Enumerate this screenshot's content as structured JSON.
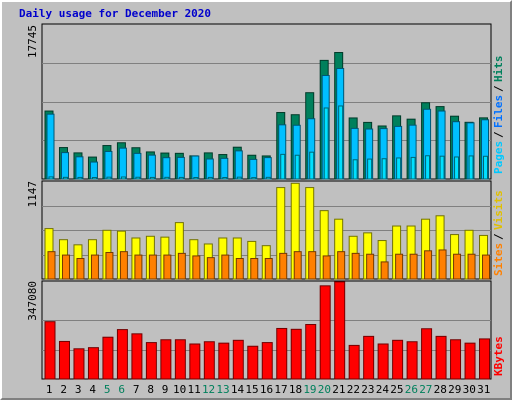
{
  "chart_data": [
    {
      "type": "bar",
      "title": "Daily usage for December 2020",
      "panel": "pages-files-hits",
      "ylabel_max": "17745",
      "ymax": 17745,
      "legend": [
        "Pages",
        "Files",
        "Hits"
      ],
      "legend_placement": "right",
      "categories": [
        "1",
        "2",
        "3",
        "4",
        "5",
        "6",
        "7",
        "8",
        "9",
        "10",
        "11",
        "12",
        "13",
        "14",
        "15",
        "16",
        "17",
        "18",
        "19",
        "20",
        "21",
        "22",
        "23",
        "24",
        "25",
        "26",
        "27",
        "28",
        "29",
        "30",
        "31"
      ],
      "weekend_days": [
        "5",
        "6",
        "12",
        "13",
        "19",
        "20",
        "26",
        "27"
      ],
      "grid": true,
      "series": [
        {
          "name": "Hits",
          "values": [
            7780,
            3600,
            2990,
            2510,
            3830,
            4150,
            3580,
            3100,
            2970,
            2940,
            2650,
            2990,
            2800,
            3640,
            2720,
            2640,
            7610,
            7360,
            9880,
            13580,
            14480,
            6990,
            6480,
            6070,
            7230,
            6850,
            8730,
            8290,
            7190,
            6490,
            7000
          ]
        },
        {
          "name": "Files",
          "values": [
            7420,
            3020,
            2540,
            1940,
            3150,
            3530,
            2930,
            2730,
            2440,
            2470,
            2630,
            2290,
            2360,
            3220,
            2240,
            2450,
            6200,
            6150,
            6900,
            11850,
            12650,
            5790,
            5720,
            5770,
            6020,
            6160,
            7980,
            7780,
            6560,
            6430,
            6780
          ]
        },
        {
          "name": "Pages",
          "values": [
            240,
            190,
            180,
            170,
            210,
            230,
            200,
            180,
            190,
            180,
            170,
            180,
            170,
            210,
            160,
            190,
            2820,
            2720,
            3070,
            8130,
            8360,
            2200,
            2280,
            2320,
            2410,
            2470,
            2660,
            2610,
            2520,
            2640,
            2600
          ]
        }
      ]
    },
    {
      "type": "bar",
      "panel": "sites-visits",
      "ylabel_max": "1147",
      "ymax": 1147,
      "legend": [
        "Sites",
        "Visits"
      ],
      "legend_placement": "right",
      "categories": [
        "1",
        "2",
        "3",
        "4",
        "5",
        "6",
        "7",
        "8",
        "9",
        "10",
        "11",
        "12",
        "13",
        "14",
        "15",
        "16",
        "17",
        "18",
        "19",
        "20",
        "21",
        "22",
        "23",
        "24",
        "25",
        "26",
        "27",
        "28",
        "29",
        "30",
        "31"
      ],
      "grid": true,
      "series": [
        {
          "name": "Visits",
          "values": [
            590,
            460,
            400,
            460,
            570,
            560,
            480,
            500,
            490,
            660,
            460,
            410,
            480,
            480,
            440,
            390,
            1070,
            1120,
            1070,
            800,
            700,
            500,
            540,
            450,
            620,
            620,
            700,
            740,
            520,
            570,
            510
          ]
        },
        {
          "name": "Sites",
          "values": [
            320,
            280,
            240,
            280,
            310,
            320,
            280,
            280,
            280,
            300,
            270,
            250,
            280,
            240,
            240,
            240,
            300,
            320,
            320,
            270,
            320,
            300,
            290,
            200,
            290,
            290,
            330,
            340,
            290,
            290,
            280
          ]
        }
      ]
    },
    {
      "type": "bar",
      "panel": "kbytes",
      "ylabel_max": "347080",
      "ymax": 347080,
      "legend": [
        "KBytes"
      ],
      "legend_placement": "right",
      "categories": [
        "1",
        "2",
        "3",
        "4",
        "5",
        "6",
        "7",
        "8",
        "9",
        "10",
        "11",
        "12",
        "13",
        "14",
        "15",
        "16",
        "17",
        "18",
        "19",
        "20",
        "21",
        "22",
        "23",
        "24",
        "25",
        "26",
        "27",
        "28",
        "29",
        "30",
        "31"
      ],
      "grid": true,
      "series": [
        {
          "name": "KBytes",
          "values": [
            203000,
            133000,
            107000,
            111000,
            148000,
            175000,
            160000,
            129000,
            139000,
            139000,
            124000,
            132000,
            127000,
            137000,
            116000,
            129000,
            179000,
            176000,
            193000,
            330000,
            344000,
            119000,
            151000,
            124000,
            137000,
            132000,
            178000,
            151000,
            139000,
            127000,
            142000
          ]
        }
      ]
    }
  ],
  "colors": {
    "background": "#c0c0c0",
    "plot": "#c0c0c0",
    "title": "#0000cc",
    "hits": "#00805c",
    "files": "#00c0ff",
    "pages": "#00e0ff",
    "visits": "#ffff00",
    "sites": "#ff8000",
    "kbytes": "#ff0000",
    "weekend_label": "#00805c",
    "weekday_label": "#000000",
    "grid": "#808080",
    "separator": "#000000"
  }
}
